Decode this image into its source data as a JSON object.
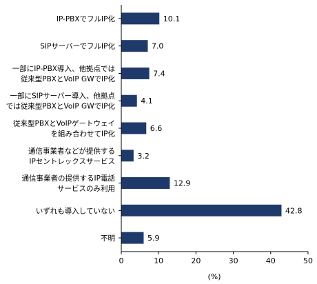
{
  "chart_data": {
    "type": "bar",
    "orientation": "horizontal",
    "categories": [
      [
        "IP-PBXでフルIP化"
      ],
      [
        "SIPサーバーでフルIP化"
      ],
      [
        "一部にIP-PBX導入、他拠点では",
        "従来型PBXとVoIP GWでIP化"
      ],
      [
        "一部にSIPサーバー導入、他拠点",
        "では従来型PBXとVoIP GWでIP化"
      ],
      [
        "従来型PBXとVoIPゲートウェイ",
        "を組み合わせてIP化"
      ],
      [
        "通信事業者などが提供する",
        "IPセントレックスサービス"
      ],
      [
        "通信事業者の提供するIP電話",
        "サービスのみ利用"
      ],
      [
        "いずれも導入していない"
      ],
      [
        "不明"
      ]
    ],
    "values": [
      10.1,
      7.0,
      7.4,
      4.1,
      6.6,
      3.2,
      12.9,
      42.8,
      5.9
    ],
    "value_labels": [
      "10.1",
      "7.0",
      "7.4",
      "4.1",
      "6.6",
      "3.2",
      "12.9",
      "42.8",
      "5.9"
    ],
    "xlim": [
      0,
      50
    ],
    "xticks": [
      0,
      10,
      20,
      30,
      40,
      50
    ],
    "xlabel": "(%)",
    "bar_color": "#1f3a6a",
    "grid": false
  }
}
